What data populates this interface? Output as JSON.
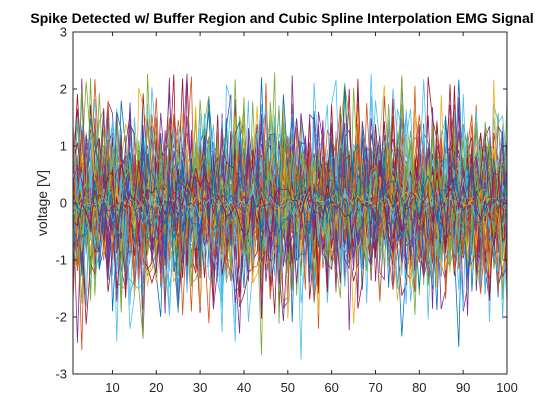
{
  "chart_data": {
    "type": "line",
    "title": "Spike Detected w/ Buffer Region and Cubic Spline Interpolation EMG Signal",
    "xlabel": "",
    "ylabel": "voltage [V]",
    "xlim": [
      1,
      100
    ],
    "ylim": [
      -3,
      3
    ],
    "xticks": [
      10,
      20,
      30,
      40,
      50,
      60,
      70,
      80,
      90,
      100
    ],
    "yticks": [
      -3,
      -2,
      -1,
      0,
      1,
      2,
      3
    ],
    "grid": false,
    "legend": "none",
    "box": true,
    "series_count": 120,
    "amplitude_range": [
      -2.75,
      2.3
    ],
    "colors": [
      "#0072BD",
      "#D95319",
      "#EDB120",
      "#7E2F8E",
      "#77AC30",
      "#4DBEEE",
      "#A2142F"
    ],
    "axis_color": "#262626",
    "background": "#ffffff"
  }
}
